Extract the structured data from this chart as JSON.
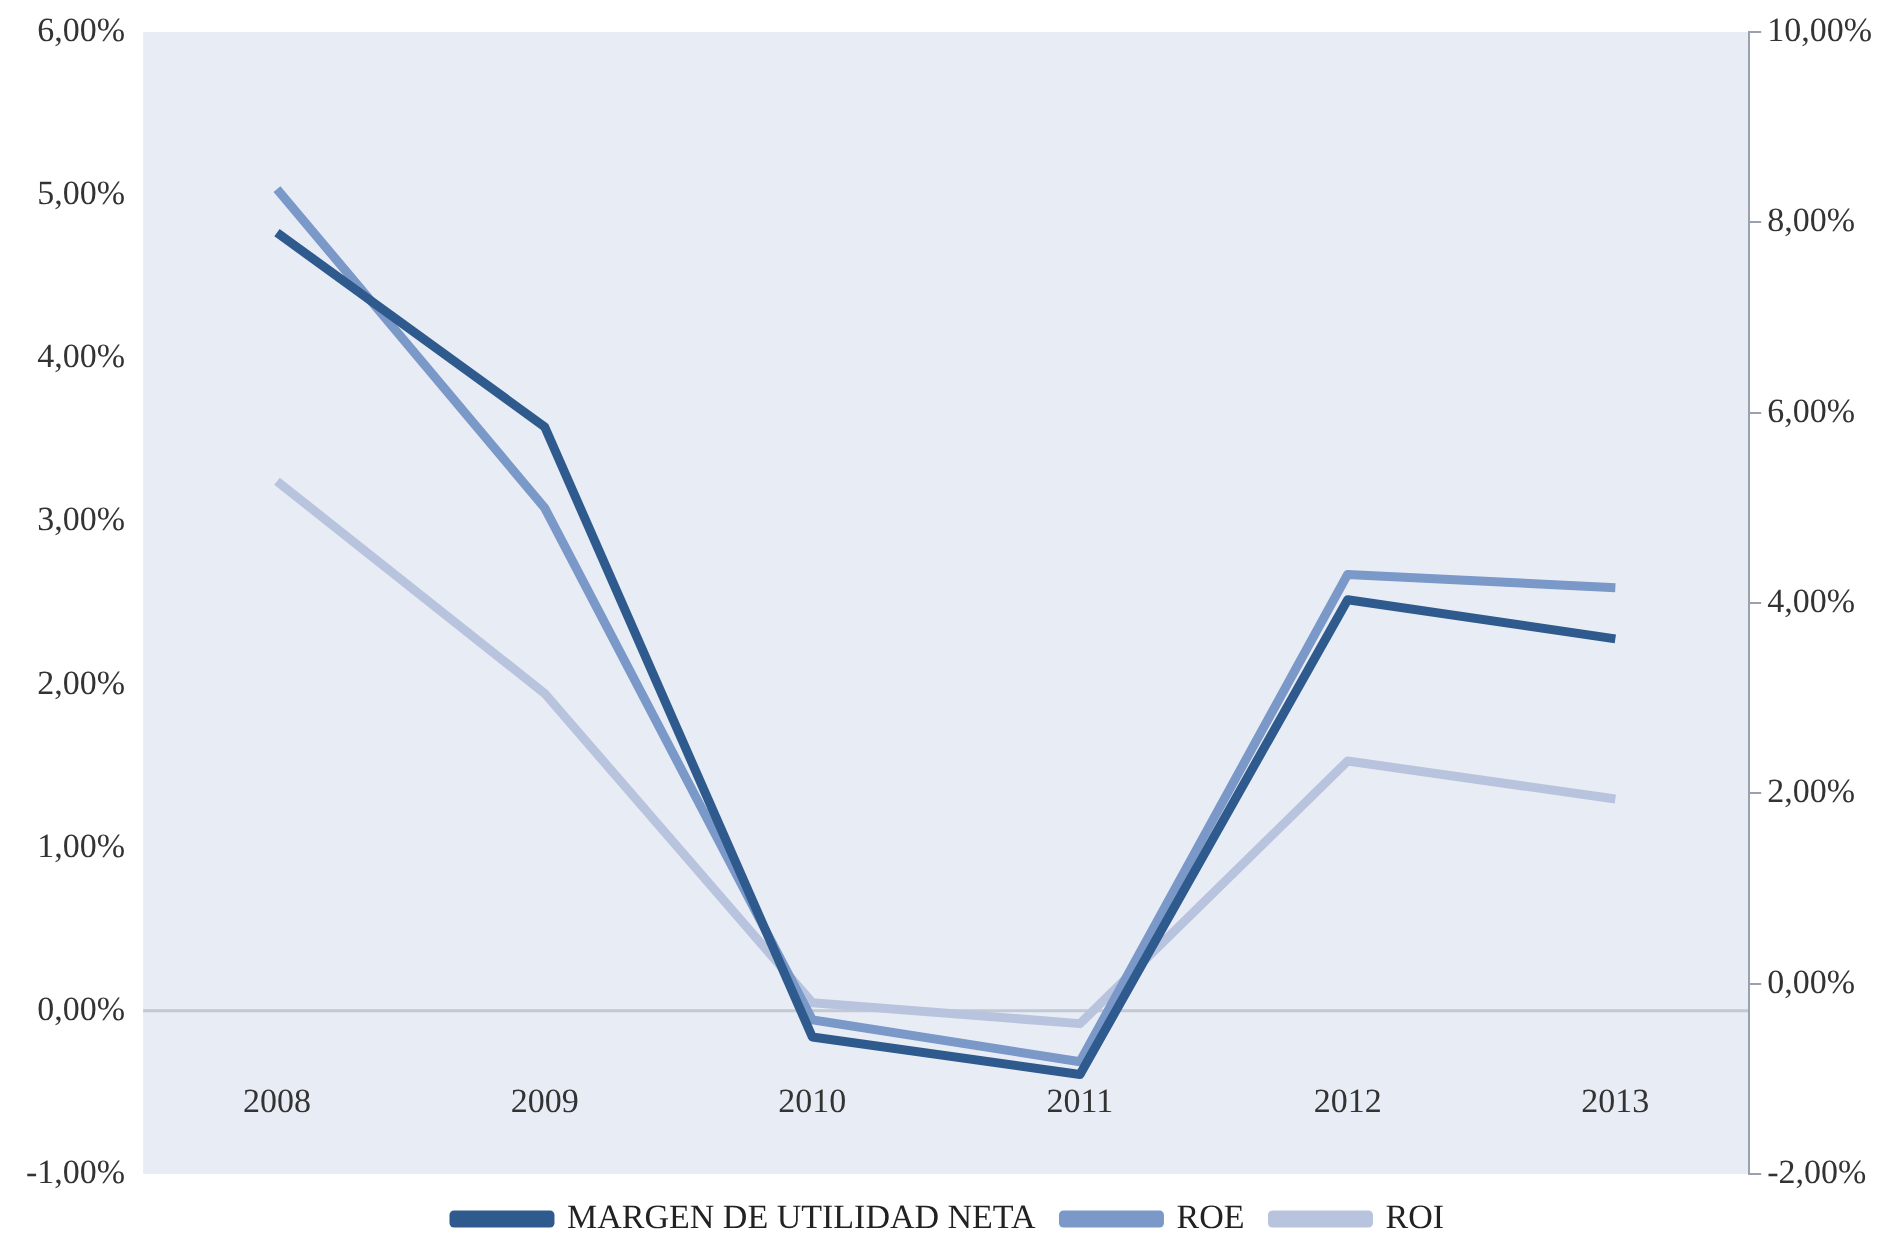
{
  "chart_data": {
    "type": "line",
    "categories": [
      "2008",
      "2009",
      "2010",
      "2011",
      "2012",
      "2013"
    ],
    "series": [
      {
        "name": "MARGEN DE UTILIDAD NETA",
        "color": "#2e5a8e",
        "values": [
          4.77,
          3.58,
          -0.16,
          -0.39,
          2.52,
          2.28
        ]
      },
      {
        "name": "ROE",
        "color": "#7a98c8",
        "axis": "y2",
        "values": [
          8.35,
          5.0,
          -0.38,
          -0.82,
          4.3,
          4.16
        ]
      },
      {
        "name": "ROI",
        "color": "#b8c4de",
        "axis": "y2",
        "values": [
          5.28,
          3.05,
          -0.2,
          -0.42,
          2.34,
          1.94
        ]
      }
    ],
    "ylim": [
      -1,
      6
    ],
    "yticks": [
      {
        "value": -1,
        "label": "-1,00%"
      },
      {
        "value": 0,
        "label": "0,00%"
      },
      {
        "value": 1,
        "label": "1,00%"
      },
      {
        "value": 2,
        "label": "2,00%"
      },
      {
        "value": 3,
        "label": "3,00%"
      },
      {
        "value": 4,
        "label": "4,00%"
      },
      {
        "value": 5,
        "label": "5,00%"
      },
      {
        "value": 6,
        "label": "6,00%"
      }
    ],
    "y2lim": [
      -2,
      10
    ],
    "y2ticks": [
      {
        "value": -2,
        "label": "-2,00%"
      },
      {
        "value": 0,
        "label": "0,00%"
      },
      {
        "value": 2,
        "label": "2,00%"
      },
      {
        "value": 4,
        "label": "4,00%"
      },
      {
        "value": 6,
        "label": "6,00%"
      },
      {
        "value": 8,
        "label": "8,00%"
      },
      {
        "value": 10,
        "label": "10,00%"
      }
    ],
    "ref_lines": [
      {
        "axis": "y",
        "value": 0,
        "color": "#c2c8d4"
      }
    ],
    "grid": false,
    "legend": "bottom",
    "marker": "none",
    "line_style": "solid"
  }
}
